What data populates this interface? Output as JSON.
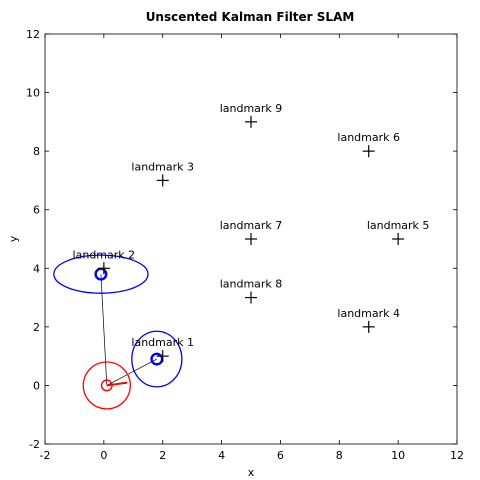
{
  "chart_data": {
    "type": "scatter",
    "title": "Unscented Kalman Filter SLAM",
    "xlabel": "x",
    "ylabel": "y",
    "xlim": [
      -2,
      12
    ],
    "ylim": [
      -2,
      12
    ],
    "xticks": [
      -2,
      0,
      2,
      4,
      6,
      8,
      10,
      12
    ],
    "yticks": [
      -2,
      0,
      2,
      4,
      6,
      8,
      10,
      12
    ],
    "grid": false,
    "landmarks": [
      {
        "label": "landmark 1",
        "x": 2,
        "y": 1
      },
      {
        "label": "landmark 2",
        "x": 0,
        "y": 4
      },
      {
        "label": "landmark 3",
        "x": 2,
        "y": 7
      },
      {
        "label": "landmark 4",
        "x": 9,
        "y": 2
      },
      {
        "label": "landmark 5",
        "x": 10,
        "y": 5
      },
      {
        "label": "landmark 6",
        "x": 9,
        "y": 8
      },
      {
        "label": "landmark 7",
        "x": 5,
        "y": 5
      },
      {
        "label": "landmark 8",
        "x": 5,
        "y": 3
      },
      {
        "label": "landmark 9",
        "x": 5,
        "y": 9
      }
    ],
    "robot": {
      "x": 0.1,
      "y": 0.0,
      "heading_deg": 8,
      "color": "#ff0000",
      "covariance": {
        "rx": 0.8,
        "ry": 0.8,
        "angle_deg": 0
      }
    },
    "landmark_estimates": [
      {
        "target": "landmark 1",
        "x": 1.8,
        "y": 0.9,
        "color": "#0000ff",
        "covariance": {
          "rx": 0.85,
          "ry": 0.95,
          "angle_deg": 0
        }
      },
      {
        "target": "landmark 2",
        "x": -0.1,
        "y": 3.8,
        "color": "#0000ff",
        "covariance": {
          "rx": 1.6,
          "ry": 0.65,
          "angle_deg": 0
        }
      }
    ],
    "observation_color": "#000000"
  }
}
